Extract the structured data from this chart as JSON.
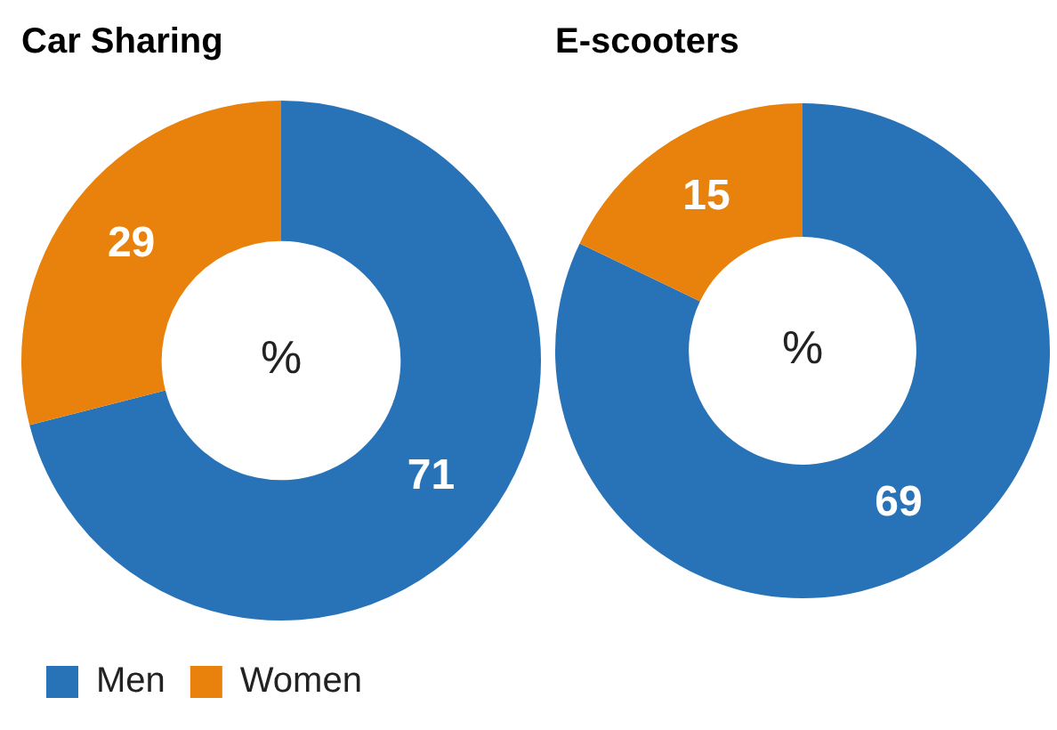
{
  "chart_data": [
    {
      "type": "donut",
      "title": "Car Sharing",
      "categories": [
        "Men",
        "Women"
      ],
      "values": [
        71,
        29
      ],
      "colors": [
        "#2872b8",
        "#e8820c"
      ],
      "data_labels": true,
      "annotations": [
        "%"
      ],
      "legend": "bottom left"
    },
    {
      "type": "donut",
      "title": "E-scooters",
      "categories": [
        null,
        null
      ],
      "values": [
        69,
        15
      ],
      "colors": [
        "#2872b8",
        "#e8820c"
      ],
      "data_labels": true,
      "annotations": [
        "%"
      ],
      "legend": false
    }
  ]
}
